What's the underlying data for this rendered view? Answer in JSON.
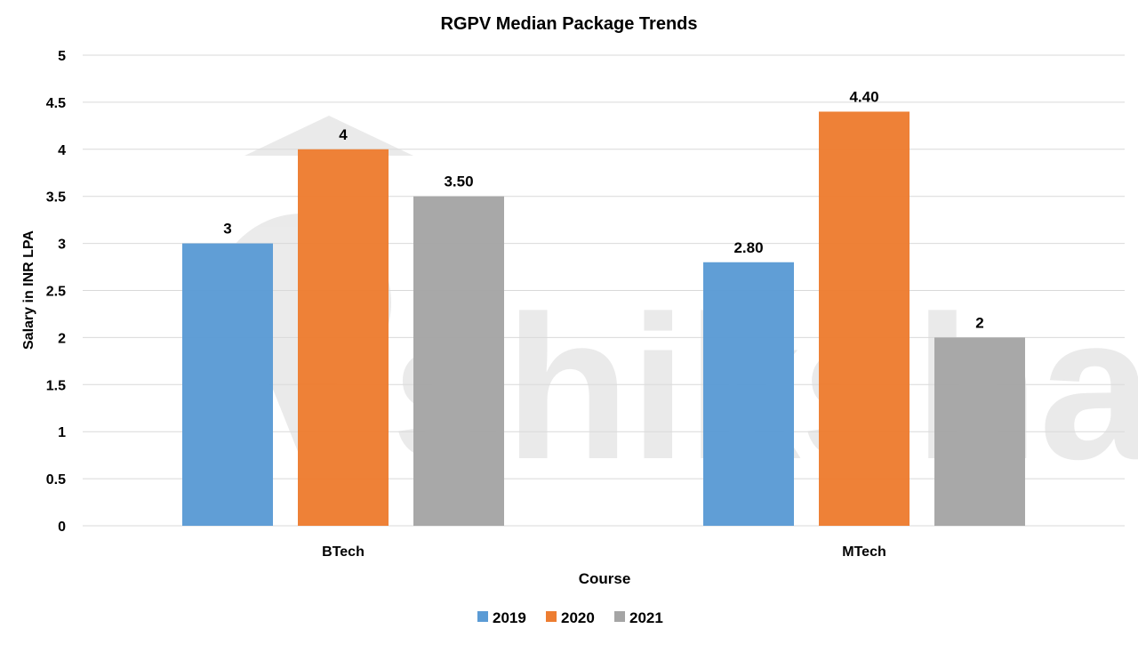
{
  "chart_data": {
    "type": "bar",
    "title": "RGPV Median Package Trends",
    "xlabel": "Course",
    "ylabel": "Salary in INR LPA",
    "categories": [
      "BTech",
      "MTech"
    ],
    "series": [
      {
        "name": "2019",
        "values": [
          3,
          2.8
        ],
        "labels": [
          "3",
          "2.80"
        ],
        "color": "#5B9BD5"
      },
      {
        "name": "2020",
        "values": [
          4,
          4.4
        ],
        "labels": [
          "4",
          "4.40"
        ],
        "color": "#ED7D31"
      },
      {
        "name": "2021",
        "values": [
          3.5,
          2
        ],
        "labels": [
          "3.50",
          "2"
        ],
        "color": "#A5A5A5"
      }
    ],
    "ylim": [
      0,
      5
    ],
    "yticks": [
      "0",
      "0.5",
      "1",
      "1.5",
      "2",
      "2.5",
      "3",
      "3.5",
      "4",
      "4.5",
      "5"
    ],
    "grid": true,
    "legend_position": "bottom",
    "watermark": "shiksha"
  }
}
